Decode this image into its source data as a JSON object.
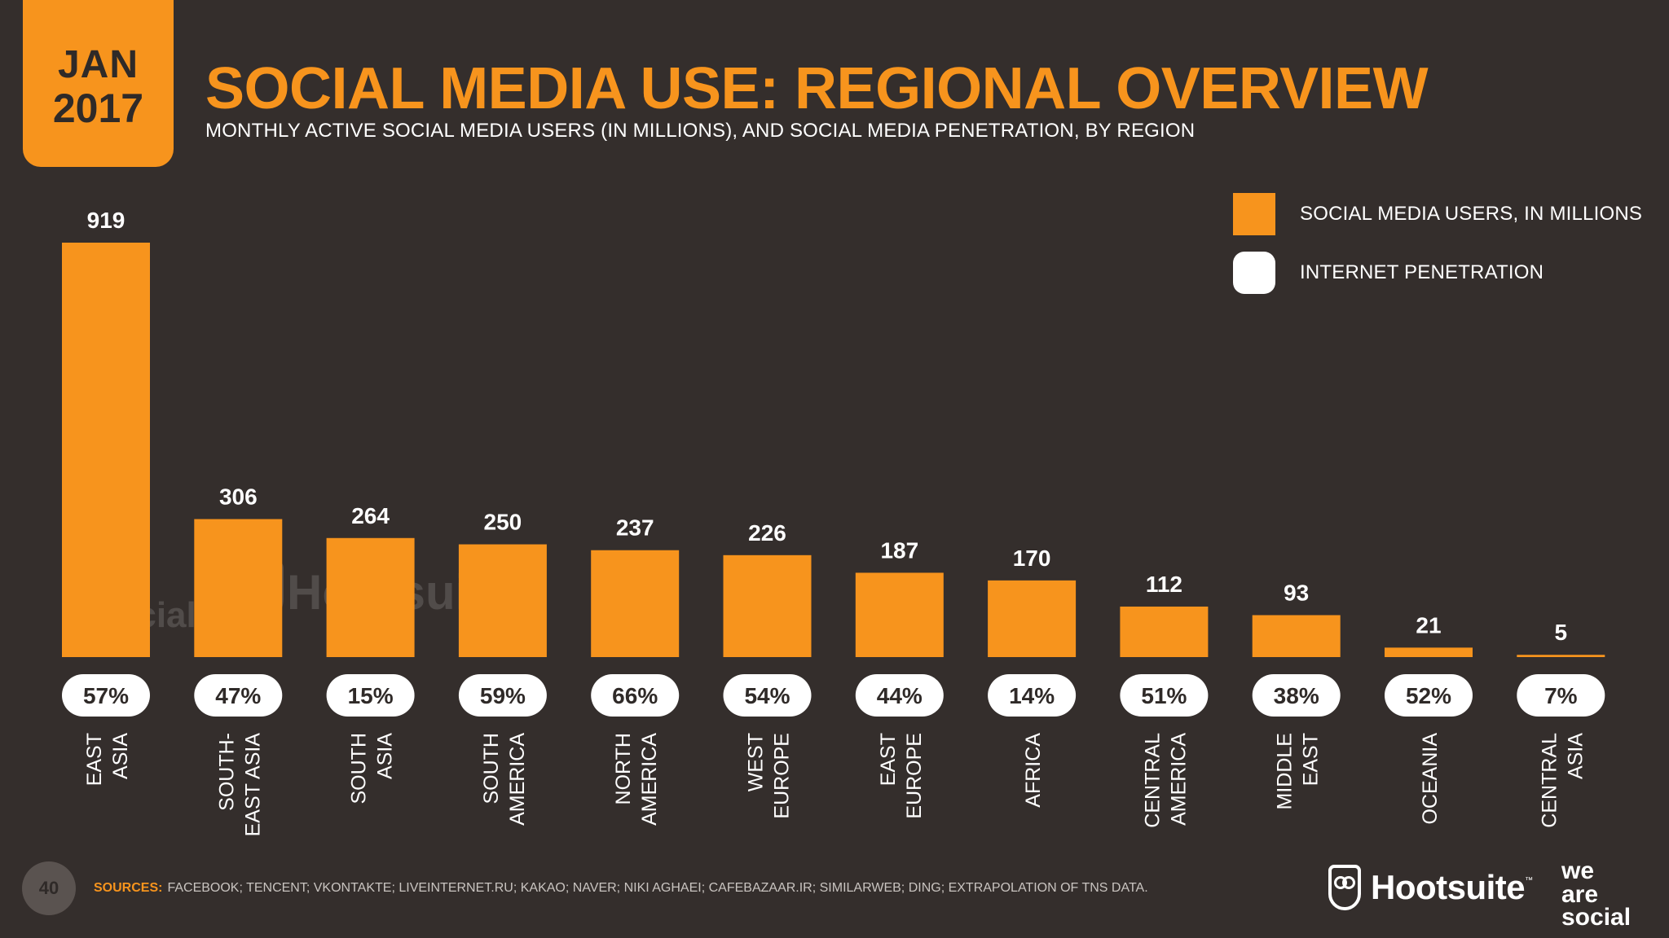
{
  "badge": {
    "month": "JAN",
    "year": "2017"
  },
  "title": "SOCIAL MEDIA USE: REGIONAL OVERVIEW",
  "subtitle": "MONTHLY ACTIVE SOCIAL MEDIA USERS (IN MILLIONS), AND SOCIAL MEDIA PENETRATION, BY REGION",
  "legend": {
    "bar_label": "SOCIAL MEDIA USERS, IN MILLIONS",
    "penetration_label": "INTERNET PENETRATION"
  },
  "colors": {
    "accent": "#f7941d",
    "background": "#342e2c",
    "pill": "#ffffff",
    "pill_text": "#2f2a28"
  },
  "chart_data": {
    "type": "bar",
    "categories": [
      [
        "EAST",
        "ASIA"
      ],
      [
        "SOUTH-",
        "EAST ASIA"
      ],
      [
        "SOUTH",
        "ASIA"
      ],
      [
        "SOUTH",
        "AMERICA"
      ],
      [
        "NORTH",
        "AMERICA"
      ],
      [
        "WEST",
        "EUROPE"
      ],
      [
        "EAST",
        "EUROPE"
      ],
      [
        "AFRICA"
      ],
      [
        "CENTRAL",
        "AMERICA"
      ],
      [
        "MIDDLE",
        "EAST"
      ],
      [
        "OCEANIA"
      ],
      [
        "CENTRAL",
        "ASIA"
      ]
    ],
    "series": [
      {
        "name": "SOCIAL MEDIA USERS, IN MILLIONS",
        "values": [
          919,
          306,
          264,
          250,
          237,
          226,
          187,
          170,
          112,
          93,
          21,
          5
        ]
      },
      {
        "name": "INTERNET PENETRATION",
        "values": [
          "57%",
          "47%",
          "15%",
          "59%",
          "66%",
          "54%",
          "44%",
          "14%",
          "51%",
          "38%",
          "52%",
          "7%"
        ]
      }
    ],
    "ylim": [
      0,
      919
    ],
    "grid": false,
    "legend_position": "top-right"
  },
  "watermark": {
    "was": [
      "we",
      "are",
      "social"
    ],
    "hootsuite": "Hootsuite"
  },
  "footer": {
    "page_number": "40",
    "sources_label": "SOURCES:",
    "sources_text": "FACEBOOK; TENCENT; VKONTAKTE; LIVEINTERNET.RU; KAKAO; NAVER; NIKI AGHAEI; CAFEBAZAAR.IR; SIMILARWEB; DING; EXTRAPOLATION OF TNS DATA.",
    "hootsuite": "Hootsuite",
    "hootsuite_tm": "™",
    "was": [
      "we",
      "are",
      "social"
    ]
  }
}
